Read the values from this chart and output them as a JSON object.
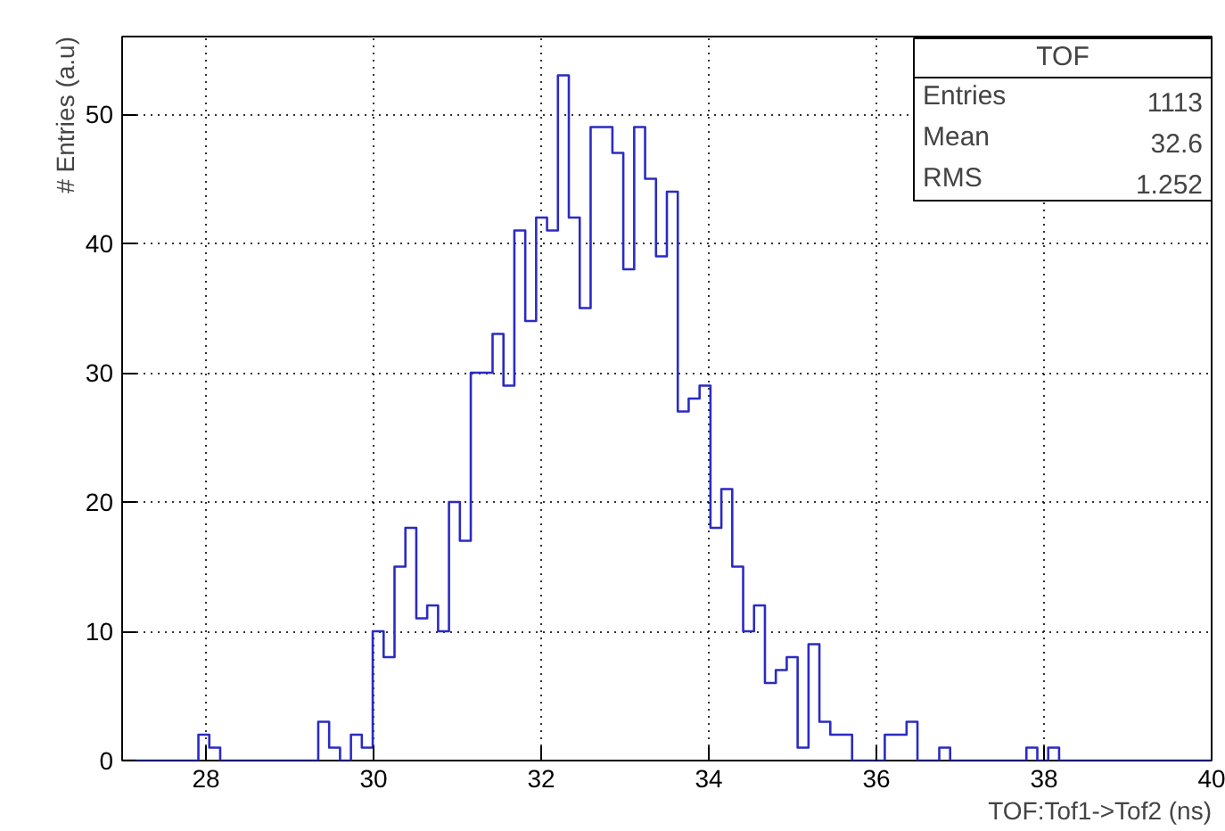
{
  "chart_data": {
    "type": "histogram",
    "xlabel": "TOF:Tof1->Tof2 (ns)",
    "ylabel": "# Entries (a.u)",
    "bins": [
      27.0,
      27.13,
      27.26,
      27.39,
      27.52,
      27.65,
      27.78,
      27.91,
      28.04,
      28.17,
      28.3,
      28.43,
      28.56,
      28.69,
      28.82,
      28.95,
      29.08,
      29.21,
      29.34,
      29.47,
      29.6,
      29.73,
      29.86,
      29.99,
      30.12,
      30.25,
      30.38,
      30.51,
      30.64,
      30.77,
      30.9,
      31.03,
      31.16,
      31.29,
      31.42,
      31.55,
      31.68,
      31.81,
      31.94,
      32.07,
      32.2,
      32.33,
      32.46,
      32.59,
      32.72,
      32.85,
      32.98,
      33.11,
      33.24,
      33.37,
      33.5,
      33.63,
      33.76,
      33.89,
      34.02,
      34.15,
      34.28,
      34.41,
      34.54,
      34.67,
      34.8,
      34.93,
      35.06,
      35.19,
      35.32,
      35.45,
      35.58,
      35.71,
      35.84,
      35.97,
      36.1,
      36.23,
      36.36,
      36.49,
      36.62,
      36.75,
      36.88,
      37.01,
      37.14,
      37.27,
      37.4,
      37.53,
      37.66,
      37.79,
      37.92,
      38.05,
      38.18,
      38.31,
      38.44,
      38.57,
      38.7,
      38.83,
      38.96,
      39.09,
      39.22,
      39.35,
      39.48,
      39.61,
      39.74,
      39.87,
      40.0
    ],
    "values": [
      0,
      0,
      0,
      0,
      0,
      0,
      0,
      2,
      1,
      0,
      0,
      0,
      0,
      0,
      0,
      0,
      0,
      0,
      3,
      1,
      0,
      2,
      1,
      10,
      8,
      15,
      18,
      11,
      12,
      10,
      20,
      17,
      30,
      30,
      33,
      29,
      41,
      34,
      42,
      41,
      53,
      42,
      35,
      49,
      49,
      47,
      38,
      49,
      45,
      39,
      44,
      27,
      28,
      29,
      18,
      21,
      15,
      10,
      12,
      6,
      7,
      8,
      1,
      9,
      3,
      2,
      2,
      0,
      0,
      0,
      2,
      2,
      3,
      0,
      0,
      1,
      0,
      0,
      0,
      0,
      0,
      0,
      0,
      1,
      0,
      1,
      0,
      0,
      0,
      0,
      0,
      0,
      0,
      0,
      0,
      0,
      0,
      0,
      0,
      0
    ],
    "color": "#2b2bc4",
    "xlim": [
      27,
      40
    ],
    "xticks": [
      28,
      30,
      32,
      34,
      36,
      38,
      40
    ],
    "ylim": [
      0,
      56
    ],
    "yticks": [
      0,
      10,
      20,
      30,
      40,
      50
    ],
    "grid": true,
    "line_style": "dotted",
    "annotations": [
      "TOF",
      "Entries",
      "1113",
      "Mean",
      "32.6",
      "RMS",
      "1.252"
    ]
  }
}
